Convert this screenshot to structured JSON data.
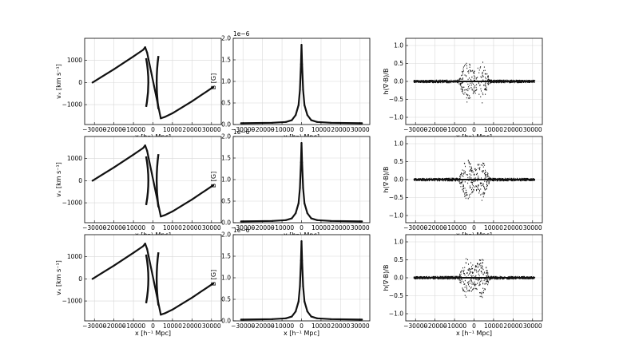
{
  "figure": {
    "colors": {
      "line": "#111111",
      "grid": "#d8d8d8",
      "axes": "#000000",
      "background": "#ffffff"
    }
  },
  "chart_data": [
    {
      "type": "line",
      "panel": "row1-col1",
      "xlabel": "x [h⁻¹ Mpc]",
      "ylabel": "vₓ [km s⁻¹]",
      "xlim": [
        -35000,
        35000
      ],
      "ylim": [
        -1900,
        2000
      ],
      "x_ticks": [
        -30000,
        -20000,
        -10000,
        0,
        10000,
        20000,
        30000
      ],
      "x_tick_labels": [
        "−30000",
        "−20000",
        "−10000",
        "0",
        "10000",
        "20000",
        "30000"
      ],
      "y_ticks": [
        -1000,
        0,
        1000
      ],
      "y_tick_labels": [
        "−1000",
        "0",
        "1000"
      ],
      "grid": true,
      "series": [
        {
          "x": [
            -31000,
            -20000,
            -10000,
            -5000,
            -4000,
            -3000,
            4000,
            6000,
            10000,
            20000,
            31000
          ],
          "y": [
            0,
            600,
            1180,
            1480,
            1600,
            1350,
            -1620,
            -1560,
            -1390,
            -850,
            -200
          ]
        }
      ]
    },
    {
      "type": "line",
      "panel": "row1-col2",
      "title": "1e−6",
      "xlabel": "x [h⁻¹ Mpc]",
      "ylabel": "B [G]",
      "xlim": [
        -35000,
        35000
      ],
      "ylim": [
        0,
        2.0
      ],
      "x_ticks": [
        -30000,
        -20000,
        -10000,
        0,
        10000,
        20000,
        30000
      ],
      "x_tick_labels": [
        "−30000",
        "−20000",
        "−10000",
        "0",
        "10000",
        "20000",
        "30000"
      ],
      "y_ticks": [
        0.0,
        0.5,
        1.0,
        1.5,
        2.0
      ],
      "y_tick_labels": [
        "0.0",
        "0.5",
        "1.0",
        "1.5",
        "2.0"
      ],
      "grid": true,
      "series": [
        {
          "x": [
            -31000,
            -15000,
            -8000,
            -5000,
            -3000,
            -1500,
            -800,
            -300,
            0,
            300,
            800,
            1500,
            3000,
            5000,
            8000,
            15000,
            31000
          ],
          "y": [
            0.03,
            0.04,
            0.06,
            0.1,
            0.22,
            0.45,
            0.8,
            1.4,
            1.85,
            1.4,
            0.8,
            0.45,
            0.22,
            0.1,
            0.06,
            0.04,
            0.03
          ]
        }
      ]
    },
    {
      "type": "scatter",
      "panel": "row1-col3",
      "xlabel": "x [h⁻¹ Mpc]",
      "ylabel": "h(∇·B)/B",
      "xlim": [
        -35000,
        35000
      ],
      "ylim": [
        -1.2,
        1.2
      ],
      "x_ticks": [
        -30000,
        -20000,
        -10000,
        0,
        10000,
        20000,
        30000
      ],
      "x_tick_labels": [
        "−30000",
        "−20000",
        "−10000",
        "0",
        "10000",
        "20000",
        "30000"
      ],
      "y_ticks": [
        -1.0,
        -0.5,
        0.0,
        0.5,
        1.0
      ],
      "y_tick_labels": [
        "−1.0",
        "−0.5",
        "0.0",
        "0.5",
        "1.0"
      ],
      "grid": true,
      "noise_envelope": {
        "x": [
          -31000,
          -8000,
          -6000,
          -4000,
          -2000,
          0,
          2000,
          4000,
          6000,
          8000,
          31000
        ],
        "amplitude": [
          0.03,
          0.04,
          0.35,
          0.62,
          0.45,
          0.3,
          0.45,
          0.6,
          0.3,
          0.04,
          0.03
        ]
      }
    },
    {
      "type": "line",
      "panel": "row2-col1",
      "xlabel": "x [h⁻¹ Mpc]",
      "ylabel": "vₓ [km s⁻¹]",
      "xlim": [
        -35000,
        35000
      ],
      "ylim": [
        -1900,
        2000
      ],
      "x_ticks": [
        -30000,
        -20000,
        -10000,
        0,
        10000,
        20000,
        30000
      ],
      "x_tick_labels": [
        "−30000",
        "−20000",
        "−10000",
        "0",
        "10000",
        "20000",
        "30000"
      ],
      "y_ticks": [
        -1000,
        0,
        1000
      ],
      "y_tick_labels": [
        "−1000",
        "0",
        "1000"
      ],
      "grid": true,
      "series": [
        {
          "x": [
            -31000,
            -20000,
            -10000,
            -5000,
            -4000,
            -3000,
            4000,
            6000,
            10000,
            20000,
            31000
          ],
          "y": [
            0,
            600,
            1180,
            1480,
            1600,
            1350,
            -1620,
            -1560,
            -1390,
            -850,
            -200
          ]
        }
      ]
    },
    {
      "type": "line",
      "panel": "row2-col2",
      "title": "1e−6",
      "xlabel": "x [h⁻¹ Mpc]",
      "ylabel": "B [G]",
      "xlim": [
        -35000,
        35000
      ],
      "ylim": [
        0,
        2.0
      ],
      "x_ticks": [
        -30000,
        -20000,
        -10000,
        0,
        10000,
        20000,
        30000
      ],
      "x_tick_labels": [
        "−30000",
        "−20000",
        "−10000",
        "0",
        "10000",
        "20000",
        "30000"
      ],
      "y_ticks": [
        0.0,
        0.5,
        1.0,
        1.5,
        2.0
      ],
      "y_tick_labels": [
        "0.0",
        "0.5",
        "1.0",
        "1.5",
        "2.0"
      ],
      "grid": true,
      "series": [
        {
          "x": [
            -31000,
            -15000,
            -8000,
            -5000,
            -3000,
            -1500,
            -800,
            -300,
            0,
            300,
            800,
            1500,
            3000,
            5000,
            8000,
            15000,
            31000
          ],
          "y": [
            0.03,
            0.04,
            0.06,
            0.1,
            0.22,
            0.45,
            0.8,
            1.4,
            1.85,
            1.4,
            0.8,
            0.45,
            0.22,
            0.1,
            0.06,
            0.04,
            0.03
          ]
        }
      ]
    },
    {
      "type": "scatter",
      "panel": "row2-col3",
      "xlabel": "x [h⁻¹ Mpc]",
      "ylabel": "h(∇·B)/B",
      "xlim": [
        -35000,
        35000
      ],
      "ylim": [
        -1.2,
        1.2
      ],
      "x_ticks": [
        -30000,
        -20000,
        -10000,
        0,
        10000,
        20000,
        30000
      ],
      "x_tick_labels": [
        "−30000",
        "−20000",
        "−10000",
        "0",
        "10000",
        "20000",
        "30000"
      ],
      "y_ticks": [
        -1.0,
        -0.5,
        0.0,
        0.5,
        1.0
      ],
      "y_tick_labels": [
        "−1.0",
        "−0.5",
        "0.0",
        "0.5",
        "1.0"
      ],
      "grid": true,
      "noise_envelope": {
        "x": [
          -31000,
          -8000,
          -6000,
          -4000,
          -2000,
          0,
          2000,
          4000,
          6000,
          8000,
          31000
        ],
        "amplitude": [
          0.03,
          0.04,
          0.35,
          0.62,
          0.45,
          0.3,
          0.45,
          0.6,
          0.3,
          0.04,
          0.03
        ]
      }
    },
    {
      "type": "line",
      "panel": "row3-col1",
      "xlabel": "x [h⁻¹ Mpc]",
      "ylabel": "vₓ [km s⁻¹]",
      "xlim": [
        -35000,
        35000
      ],
      "ylim": [
        -1900,
        2000
      ],
      "x_ticks": [
        -30000,
        -20000,
        -10000,
        0,
        10000,
        20000,
        30000
      ],
      "x_tick_labels": [
        "−30000",
        "−20000",
        "−10000",
        "0",
        "10000",
        "20000",
        "30000"
      ],
      "y_ticks": [
        -1000,
        0,
        1000
      ],
      "y_tick_labels": [
        "−1000",
        "0",
        "1000"
      ],
      "grid": true,
      "series": [
        {
          "x": [
            -31000,
            -20000,
            -10000,
            -5000,
            -4000,
            -3000,
            4000,
            6000,
            10000,
            20000,
            31000
          ],
          "y": [
            0,
            600,
            1180,
            1480,
            1600,
            1350,
            -1620,
            -1560,
            -1390,
            -850,
            -200
          ]
        }
      ]
    },
    {
      "type": "line",
      "panel": "row3-col2",
      "title": "1e−6",
      "xlabel": "x [h⁻¹ Mpc]",
      "ylabel": "B [G]",
      "xlim": [
        -35000,
        35000
      ],
      "ylim": [
        0,
        2.0
      ],
      "x_ticks": [
        -30000,
        -20000,
        -10000,
        0,
        10000,
        20000,
        30000
      ],
      "x_tick_labels": [
        "−30000",
        "−20000",
        "−10000",
        "0",
        "10000",
        "20000",
        "30000"
      ],
      "y_ticks": [
        0.0,
        0.5,
        1.0,
        1.5,
        2.0
      ],
      "y_tick_labels": [
        "0.0",
        "0.5",
        "1.0",
        "1.5",
        "2.0"
      ],
      "grid": true,
      "series": [
        {
          "x": [
            -31000,
            -15000,
            -8000,
            -5000,
            -3000,
            -1500,
            -800,
            -300,
            0,
            300,
            800,
            1500,
            3000,
            5000,
            8000,
            15000,
            31000
          ],
          "y": [
            0.03,
            0.04,
            0.06,
            0.1,
            0.22,
            0.45,
            0.8,
            1.4,
            1.85,
            1.4,
            0.8,
            0.45,
            0.22,
            0.1,
            0.06,
            0.04,
            0.03
          ]
        }
      ]
    },
    {
      "type": "scatter",
      "panel": "row3-col3",
      "xlabel": "x [h⁻¹ Mpc]",
      "ylabel": "h(∇·B)/B",
      "xlim": [
        -35000,
        35000
      ],
      "ylim": [
        -1.2,
        1.2
      ],
      "x_ticks": [
        -30000,
        -20000,
        -10000,
        0,
        10000,
        20000,
        30000
      ],
      "x_tick_labels": [
        "−30000",
        "−20000",
        "−10000",
        "0",
        "10000",
        "20000",
        "30000"
      ],
      "y_ticks": [
        -1.0,
        -0.5,
        0.0,
        0.5,
        1.0
      ],
      "y_tick_labels": [
        "−1.0",
        "−0.5",
        "0.0",
        "0.5",
        "1.0"
      ],
      "grid": true,
      "noise_envelope": {
        "x": [
          -31000,
          -8000,
          -6000,
          -4000,
          -2000,
          0,
          2000,
          4000,
          6000,
          8000,
          31000
        ],
        "amplitude": [
          0.03,
          0.04,
          0.35,
          0.62,
          0.45,
          0.3,
          0.45,
          0.6,
          0.3,
          0.04,
          0.03
        ]
      }
    }
  ]
}
